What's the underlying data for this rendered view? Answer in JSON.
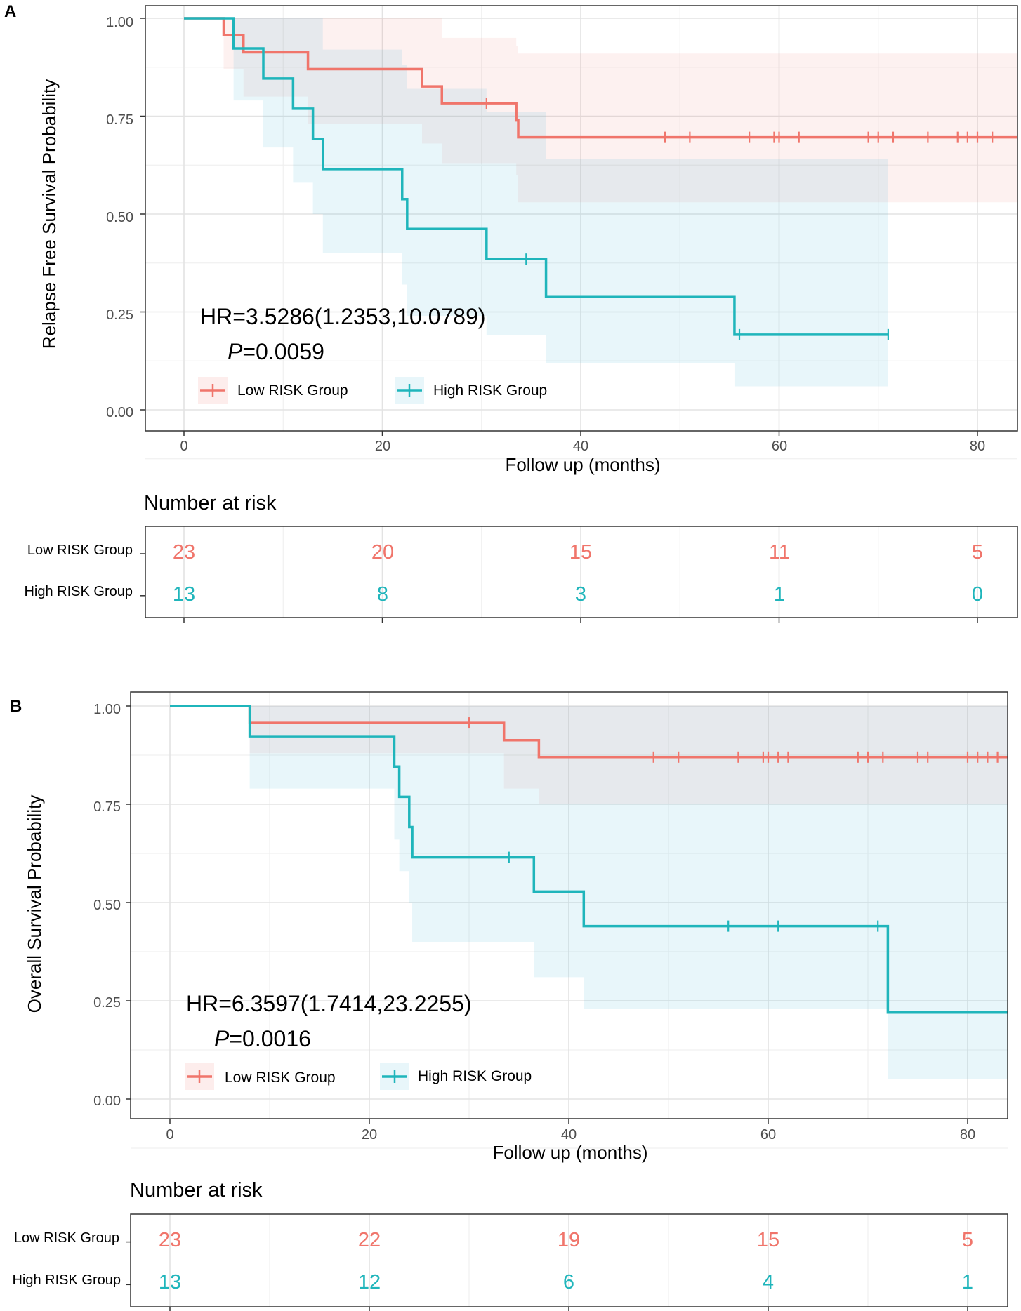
{
  "colors": {
    "low": "#f0756b",
    "high": "#1fb5bb",
    "low_ci": "#f0756b",
    "high_ci": "#4fb9d6"
  },
  "chart_data": [
    {
      "type": "line",
      "panel": "A",
      "ylabel": "Relapse Free Survival Probability",
      "xlabel": "Follow up (months)",
      "xlim": [
        -4,
        84
      ],
      "ylim": [
        0,
        1
      ],
      "x_ticks": [
        "0",
        "20",
        "40",
        "60",
        "80"
      ],
      "x_tick_values": [
        0,
        20,
        40,
        60,
        80
      ],
      "y_ticks": [
        "0.00",
        "0.25",
        "0.50",
        "0.75",
        "1.00"
      ],
      "y_tick_values": [
        0,
        0.25,
        0.5,
        0.75,
        1
      ],
      "hr_text": "HR=3.5286(1.2353,10.0789)",
      "p_label": "P",
      "p_value": "=0.0059",
      "legend": [
        "Low RISK  Group",
        "High RISK  Group"
      ],
      "series": [
        {
          "name": "Low RISK Group",
          "steps": [
            [
              0,
              1
            ],
            [
              4,
              0.957
            ],
            [
              6,
              0.913
            ],
            [
              12.5,
              0.87
            ],
            [
              24,
              0.826
            ],
            [
              26,
              0.783
            ],
            [
              33.5,
              0.739
            ],
            [
              33.7,
              0.696
            ],
            [
              84,
              0.696
            ]
          ],
          "ci": [
            [
              0,
              1,
              1
            ],
            [
              4,
              1,
              0.87
            ],
            [
              6,
              1,
              0.8
            ],
            [
              12.5,
              1,
              0.73
            ],
            [
              24,
              1,
              0.68
            ],
            [
              26,
              0.95,
              0.63
            ],
            [
              33.5,
              0.93,
              0.6
            ],
            [
              33.7,
              0.91,
              0.53
            ],
            [
              84,
              0.91,
              0.53
            ]
          ],
          "censors": [
            30.5,
            48.5,
            51,
            57,
            59.5,
            60,
            62,
            69,
            70,
            71.5,
            75,
            78,
            79,
            80,
            81.5
          ]
        },
        {
          "name": "High RISK Group",
          "steps": [
            [
              0,
              1
            ],
            [
              5,
              0.923
            ],
            [
              8,
              0.846
            ],
            [
              11,
              0.769
            ],
            [
              13,
              0.692
            ],
            [
              14,
              0.615
            ],
            [
              22,
              0.538
            ],
            [
              22.5,
              0.462
            ],
            [
              30.5,
              0.385
            ],
            [
              36.5,
              0.288
            ],
            [
              55.5,
              0.192
            ],
            [
              71,
              0.192
            ]
          ],
          "ci": [
            [
              0,
              1,
              1
            ],
            [
              5,
              1,
              0.79
            ],
            [
              8,
              1,
              0.67
            ],
            [
              11,
              1,
              0.58
            ],
            [
              13,
              1,
              0.5
            ],
            [
              14,
              0.92,
              0.4
            ],
            [
              22,
              0.88,
              0.32
            ],
            [
              22.5,
              0.82,
              0.24
            ],
            [
              30.5,
              0.76,
              0.19
            ],
            [
              36.5,
              0.64,
              0.12
            ],
            [
              55.5,
              0.64,
              0.06
            ],
            [
              71,
              0.64,
              0.06
            ]
          ],
          "censors": [
            34.5,
            56,
            71
          ]
        }
      ],
      "risk_table": {
        "title": "Number at risk",
        "labels": [
          "Low RISK  Group",
          "High RISK  Group"
        ],
        "times": [
          0,
          20,
          40,
          60,
          80
        ],
        "low": [
          "23",
          "20",
          "15",
          "11",
          "5"
        ],
        "high": [
          "13",
          "8",
          "3",
          "1",
          "0"
        ]
      }
    },
    {
      "type": "line",
      "panel": "B",
      "ylabel": "Overall Survival Probability",
      "xlabel": "Follow up (months)",
      "xlim": [
        -4,
        84
      ],
      "ylim": [
        0,
        1
      ],
      "x_ticks": [
        "0",
        "20",
        "40",
        "60",
        "80"
      ],
      "x_tick_values": [
        0,
        20,
        40,
        60,
        80
      ],
      "y_ticks": [
        "0.00",
        "0.25",
        "0.50",
        "0.75",
        "1.00"
      ],
      "y_tick_values": [
        0,
        0.25,
        0.5,
        0.75,
        1
      ],
      "hr_text": "HR=6.3597(1.7414,23.2255)",
      "p_label": "P",
      "p_value": "=0.0016",
      "legend": [
        "Low RISK Group",
        "High RISK Group"
      ],
      "series": [
        {
          "name": "Low RISK Group",
          "steps": [
            [
              0,
              1
            ],
            [
              8,
              0.957
            ],
            [
              33.5,
              0.913
            ],
            [
              37,
              0.87
            ],
            [
              84,
              0.87
            ]
          ],
          "ci": [
            [
              0,
              1,
              1
            ],
            [
              8,
              1,
              0.88
            ],
            [
              24,
              1,
              0.88
            ],
            [
              33.5,
              1,
              0.79
            ],
            [
              37,
              1,
              0.75
            ],
            [
              42,
              1,
              0.75
            ],
            [
              72,
              1,
              0.75
            ],
            [
              84,
              1,
              0.75
            ]
          ],
          "censors": [
            30,
            48.5,
            51,
            57,
            59.5,
            60,
            61,
            62,
            69,
            70,
            71.5,
            75,
            76,
            80,
            81,
            82,
            83
          ]
        },
        {
          "name": "High RISK Group",
          "steps": [
            [
              0,
              1
            ],
            [
              8,
              0.923
            ],
            [
              22.5,
              0.846
            ],
            [
              23,
              0.769
            ],
            [
              24,
              0.692
            ],
            [
              24.3,
              0.615
            ],
            [
              36.5,
              0.528
            ],
            [
              41.5,
              0.44
            ],
            [
              72,
              0.22
            ],
            [
              84,
              0.22
            ]
          ],
          "ci": [
            [
              0,
              1,
              1
            ],
            [
              8,
              1,
              0.79
            ],
            [
              22.5,
              1,
              0.66
            ],
            [
              23,
              1,
              0.58
            ],
            [
              24,
              1,
              0.5
            ],
            [
              24.3,
              1,
              0.4
            ],
            [
              36.5,
              1,
              0.31
            ],
            [
              41.5,
              1,
              0.23
            ],
            [
              72,
              1,
              0.05
            ],
            [
              84,
              1,
              0.05
            ]
          ],
          "censors": [
            34,
            56,
            61,
            71
          ]
        }
      ],
      "risk_table": {
        "title": "Number at risk",
        "labels": [
          "Low RISK Group",
          "High RISK Group"
        ],
        "times": [
          0,
          20,
          40,
          60,
          80
        ],
        "low": [
          "23",
          "22",
          "19",
          "15",
          "5"
        ],
        "high": [
          "13",
          "12",
          "6",
          "4",
          "1"
        ]
      }
    }
  ]
}
